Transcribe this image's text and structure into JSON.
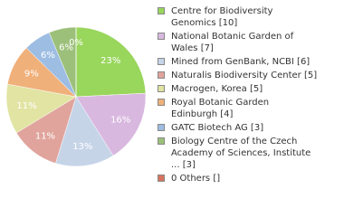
{
  "chart_data": {
    "type": "pie",
    "categories": [
      "Centre for Biodiversity Genomics [10]",
      "National Botanic Garden of Wales [7]",
      "Mined from GenBank, NCBI [6]",
      "Naturalis Biodiversity Center [5]",
      "Macrogen, Korea [5]",
      "Royal Botanic Garden Edinburgh [4]",
      "GATC Biotech AG [3]",
      "Biology Centre of the Czech Academy of Sciences, Institute ... [3]",
      "0 Others []"
    ],
    "values": [
      23,
      16,
      13,
      11,
      11,
      9,
      6,
      6,
      0
    ],
    "value_labels": [
      "23%",
      "16%",
      "13%",
      "11%",
      "11%",
      "9%",
      "6%",
      "6%",
      "0%"
    ],
    "colors": [
      "#99d65c",
      "#d9b8e0",
      "#c6d4e8",
      "#e0a49c",
      "#e1e4a2",
      "#f0b07a",
      "#9ebde3",
      "#9cc07a",
      "#d9735e"
    ]
  }
}
